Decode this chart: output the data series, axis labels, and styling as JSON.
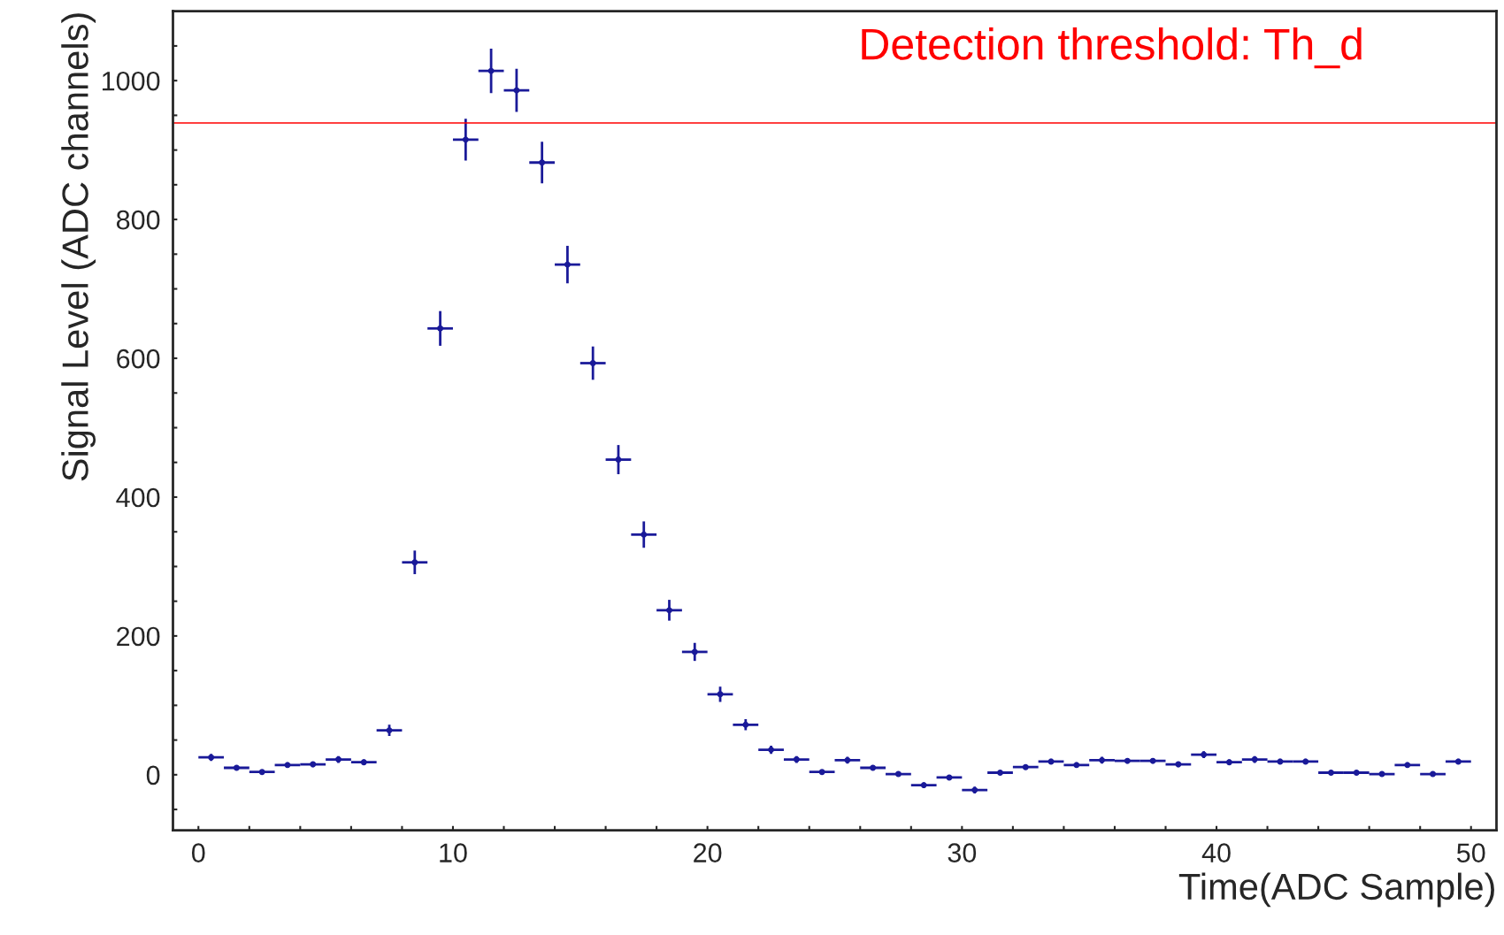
{
  "chart_data": {
    "type": "scatter",
    "xlabel": "Time(ADC Sample)",
    "ylabel": "Signal Level (ADC channels)",
    "x": [
      0.5,
      1.5,
      2.5,
      3.5,
      4.5,
      5.5,
      6.5,
      7.5,
      8.5,
      9.5,
      10.5,
      11.5,
      12.5,
      13.5,
      14.5,
      15.5,
      16.5,
      17.5,
      18.5,
      19.5,
      20.5,
      21.5,
      22.5,
      23.5,
      24.5,
      25.5,
      26.5,
      27.5,
      28.5,
      29.5,
      30.5,
      31.5,
      32.5,
      33.5,
      34.5,
      35.5,
      36.5,
      37.5,
      38.5,
      39.5,
      40.5,
      41.5,
      42.5,
      43.5,
      44.5,
      45.5,
      46.5,
      47.5,
      48.5,
      49.5
    ],
    "series": [
      {
        "color": "#1a1a99",
        "marker": "circle",
        "values": [
          25,
          10,
          4,
          14,
          15,
          22,
          18,
          64,
          306,
          643,
          915,
          1014,
          986,
          882,
          735,
          593,
          454,
          346,
          237,
          177,
          116,
          72,
          36,
          22,
          4,
          21,
          10,
          1,
          -15,
          -4,
          -22,
          3,
          11,
          19,
          14,
          21,
          20,
          20,
          15,
          29,
          18,
          22,
          19,
          19,
          3,
          3,
          1,
          14,
          1,
          19
        ],
        "errors": [
          5,
          3,
          2,
          4,
          4,
          5,
          4,
          8,
          17,
          25,
          30,
          32,
          31,
          30,
          27,
          24,
          21,
          19,
          15,
          13,
          11,
          8,
          6,
          5,
          2,
          5,
          3,
          1,
          4,
          2,
          5,
          2,
          3,
          4,
          4,
          5,
          4,
          4,
          4,
          5,
          4,
          5,
          4,
          4,
          2,
          2,
          1,
          4,
          1,
          4
        ],
        "xerrors": [
          0.5,
          0.5,
          0.5,
          0.5,
          0.5,
          0.5,
          0.5,
          0.5,
          0.5,
          0.5,
          0.5,
          0.5,
          0.5,
          0.5,
          0.5,
          0.5,
          0.5,
          0.5,
          0.5,
          0.5,
          0.5,
          0.5,
          0.5,
          0.5,
          0.5,
          0.5,
          0.5,
          0.5,
          0.5,
          0.5,
          0.5,
          0.5,
          0.5,
          0.5,
          0.5,
          0.5,
          0.5,
          0.5,
          0.5,
          0.5,
          0.5,
          0.5,
          0.5,
          0.5,
          0.5,
          0.5,
          0.5,
          0.5,
          0.5,
          0.5
        ]
      }
    ],
    "xlim": [
      -1,
      51
    ],
    "ylim": [
      -80,
      1100
    ],
    "xticks": [
      0,
      {
        "value": 2,
        "label": null
      },
      {
        "value": 4,
        "label": null
      },
      {
        "value": 6,
        "label": null
      },
      {
        "value": 8,
        "label": null
      },
      10,
      {
        "value": 12,
        "label": null
      },
      {
        "value": 14,
        "label": null
      },
      {
        "value": 16,
        "label": null
      },
      {
        "value": 18,
        "label": null
      },
      20,
      {
        "value": 22,
        "label": null
      },
      {
        "value": 24,
        "label": null
      },
      {
        "value": 26,
        "label": null
      },
      {
        "value": 28,
        "label": null
      },
      30,
      {
        "value": 32,
        "label": null
      },
      {
        "value": 34,
        "label": null
      },
      {
        "value": 36,
        "label": null
      },
      {
        "value": 38,
        "label": null
      },
      40,
      {
        "value": 42,
        "label": null
      },
      {
        "value": 44,
        "label": null
      },
      {
        "value": 46,
        "label": null
      },
      {
        "value": 48,
        "label": null
      },
      50
    ],
    "yticks": [
      {
        "value": -50,
        "label": null
      },
      0,
      {
        "value": 50,
        "label": null
      },
      {
        "value": 100,
        "label": null
      },
      {
        "value": 150,
        "label": null
      },
      200,
      {
        "value": 250,
        "label": null
      },
      {
        "value": 300,
        "label": null
      },
      {
        "value": 350,
        "label": null
      },
      400,
      {
        "value": 450,
        "label": null
      },
      {
        "value": 500,
        "label": null
      },
      {
        "value": 550,
        "label": null
      },
      600,
      {
        "value": 650,
        "label": null
      },
      {
        "value": 700,
        "label": null
      },
      {
        "value": 750,
        "label": null
      },
      800,
      {
        "value": 850,
        "label": null
      },
      {
        "value": 900,
        "label": null
      },
      {
        "value": 950,
        "label": null
      },
      1000,
      {
        "value": 1050,
        "label": null
      }
    ],
    "ref_lines": [
      {
        "axis": "y",
        "value": 939,
        "label": "Detection threshold: Th_d",
        "color": "#ff0000",
        "line_style": "solid"
      }
    ],
    "grid": false,
    "legend": false
  }
}
